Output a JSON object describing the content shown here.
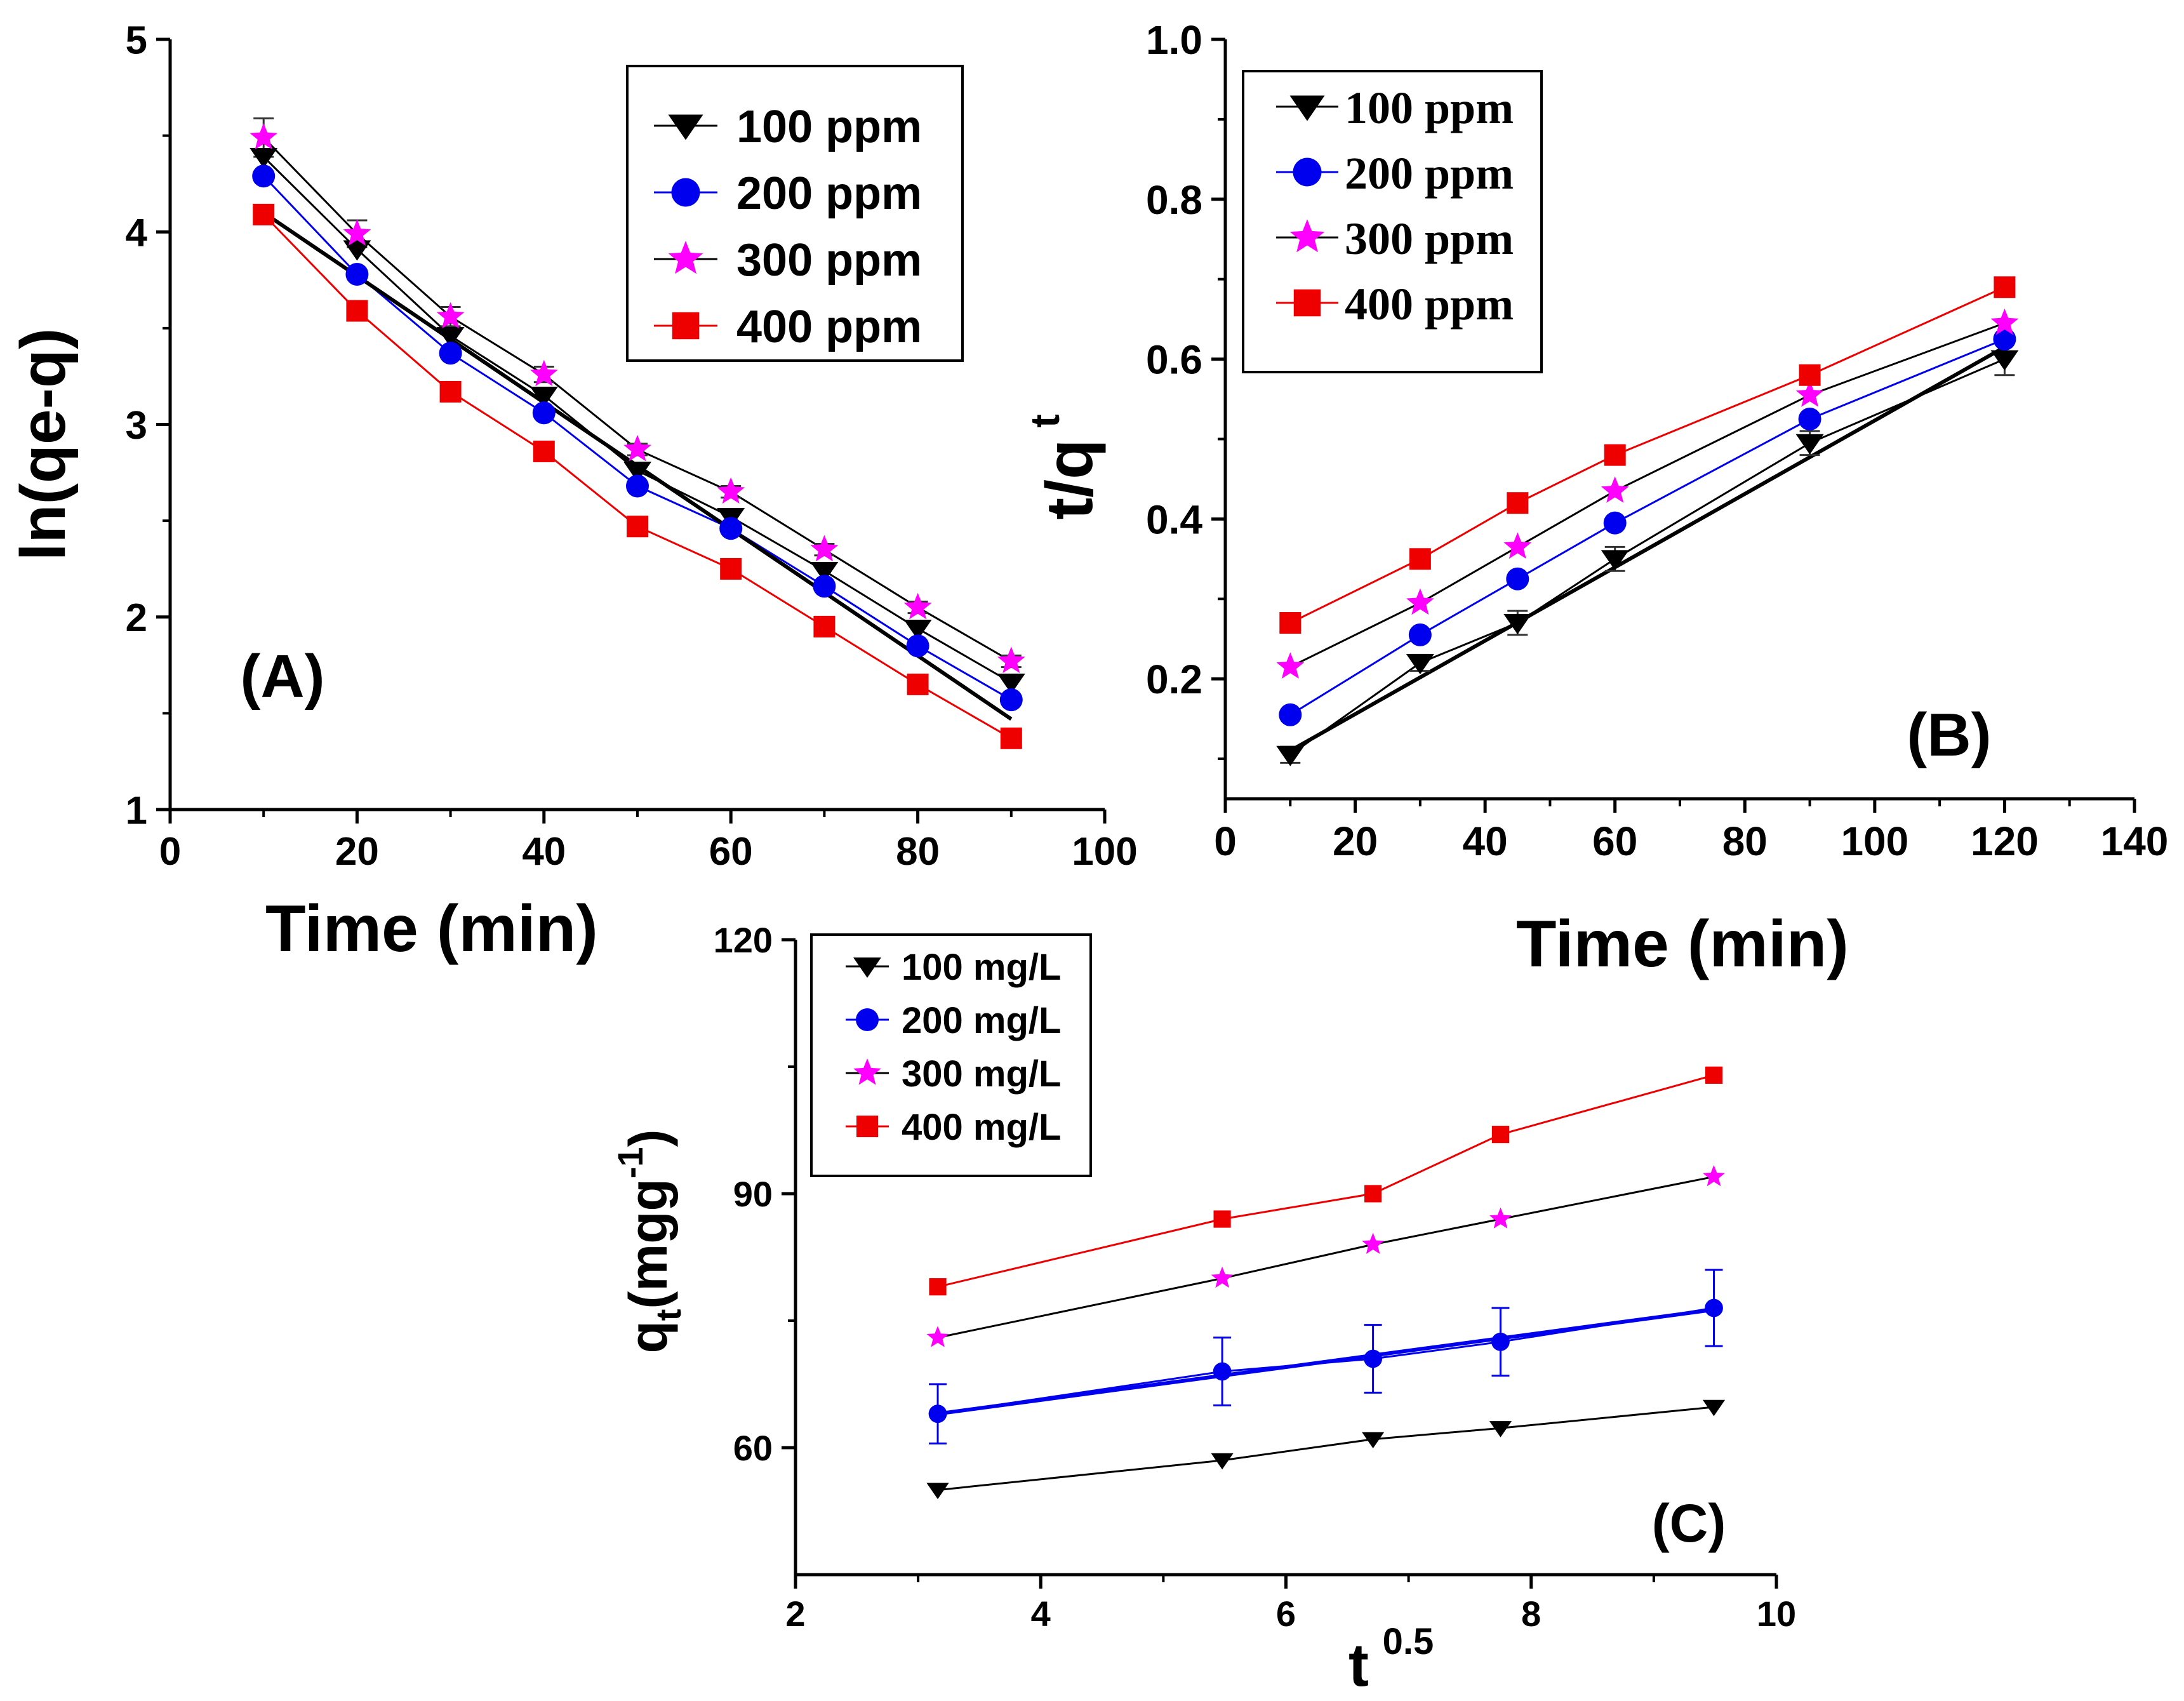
{
  "colors": {
    "s100": "#000000",
    "s200": "#0000ee",
    "s300": "#ff00ff",
    "s400": "#ee0000",
    "line100": "#000000",
    "line200": "#0000ee",
    "line300": "#000000",
    "line400": "#ee0000"
  },
  "chart_data": [
    {
      "id": "A",
      "type": "line",
      "panel_label": "(A)",
      "xlabel": "Time (min)",
      "ylabel": "ln(qe-q)",
      "xlim": [
        0,
        100
      ],
      "ylim": [
        1,
        5
      ],
      "xticks": [
        0,
        20,
        40,
        60,
        80,
        100
      ],
      "yticks": [
        1,
        2,
        3,
        4,
        5
      ],
      "x": [
        10,
        20,
        30,
        40,
        50,
        60,
        70,
        80,
        90
      ],
      "legend_position": "top-right",
      "series": [
        {
          "name": "100 ppm",
          "marker": "triangle-down",
          "values": [
            4.39,
            3.91,
            3.46,
            3.15,
            2.76,
            2.52,
            2.24,
            1.94,
            1.66
          ]
        },
        {
          "name": "200 ppm",
          "marker": "circle",
          "values": [
            4.29,
            3.78,
            3.37,
            3.06,
            2.68,
            2.46,
            2.16,
            1.85,
            1.57
          ]
        },
        {
          "name": "300 ppm",
          "marker": "star",
          "values": [
            4.49,
            3.99,
            3.56,
            3.26,
            2.87,
            2.65,
            2.35,
            2.05,
            1.77
          ]
        },
        {
          "name": "400 ppm",
          "marker": "square",
          "values": [
            4.09,
            3.59,
            3.17,
            2.86,
            2.47,
            2.25,
            1.95,
            1.65,
            1.37
          ]
        }
      ],
      "error_bars": {
        "series": "300 ppm",
        "values": [
          0.1,
          0.07,
          0.05,
          0.04,
          0.03,
          0.03,
          0.03,
          0.03,
          0.03
        ]
      },
      "trendline": {
        "from": [
          10,
          4.1
        ],
        "to": [
          90,
          1.47
        ]
      }
    },
    {
      "id": "B",
      "type": "line",
      "panel_label": "(B)",
      "xlabel": "Time (min)",
      "ylabel": "t/q",
      "ylabel_sup": "t",
      "xlim": [
        0,
        140
      ],
      "ylim": [
        0.05,
        1.0
      ],
      "xticks": [
        0,
        20,
        40,
        60,
        80,
        100,
        120,
        140
      ],
      "yticks": [
        0.2,
        0.4,
        0.6,
        0.8,
        1.0
      ],
      "x": [
        10,
        30,
        45,
        60,
        90,
        120
      ],
      "legend_position": "top-left",
      "series": [
        {
          "name": "100 ppm",
          "marker": "triangle-down",
          "values": [
            0.105,
            0.22,
            0.27,
            0.35,
            0.495,
            0.6
          ]
        },
        {
          "name": "200 ppm",
          "marker": "circle",
          "values": [
            0.155,
            0.255,
            0.325,
            0.395,
            0.525,
            0.625
          ]
        },
        {
          "name": "300 ppm",
          "marker": "star",
          "values": [
            0.215,
            0.295,
            0.365,
            0.435,
            0.555,
            0.645
          ]
        },
        {
          "name": "400 ppm",
          "marker": "square",
          "values": [
            0.27,
            0.35,
            0.42,
            0.48,
            0.58,
            0.69
          ]
        }
      ],
      "error_bars": {
        "series": "100 ppm",
        "values": [
          0.01,
          0.01,
          0.015,
          0.015,
          0.015,
          0.02
        ]
      },
      "trendline": {
        "from": [
          10,
          0.11
        ],
        "to": [
          120,
          0.615
        ]
      }
    },
    {
      "id": "C",
      "type": "line",
      "panel_label": "(C)",
      "xlabel": "t",
      "xlabel_sup": "0.5",
      "ylabel": "q",
      "ylabel_sub": "t",
      "ylabel_rest": "(mgg",
      "ylabel_sup": "-1",
      "ylabel_end": ")",
      "xlim": [
        2,
        10
      ],
      "ylim": [
        45,
        120
      ],
      "xticks": [
        2,
        4,
        6,
        8,
        10
      ],
      "yticks": [
        60,
        90,
        120
      ],
      "x": [
        3.16,
        5.48,
        6.71,
        7.75,
        9.49
      ],
      "legend_position": "top-left",
      "series": [
        {
          "name": "100 mg/L",
          "marker": "triangle-down",
          "values": [
            55,
            58.5,
            61,
            62.3,
            64.8
          ]
        },
        {
          "name": "200 mg/L",
          "marker": "circle",
          "values": [
            64,
            69,
            70.5,
            72.5,
            76.5
          ]
        },
        {
          "name": "300 mg/L",
          "marker": "star",
          "values": [
            73,
            80,
            84,
            87,
            92
          ]
        },
        {
          "name": "400 mg/L",
          "marker": "square",
          "values": [
            79,
            87,
            90,
            97,
            104
          ]
        }
      ],
      "error_bars": {
        "series": "200 mg/L",
        "values": [
          3.5,
          4,
          4,
          4,
          4.5
        ]
      },
      "trendline": {
        "from": [
          3.16,
          64
        ],
        "to": [
          9.49,
          76.3
        ]
      }
    }
  ]
}
